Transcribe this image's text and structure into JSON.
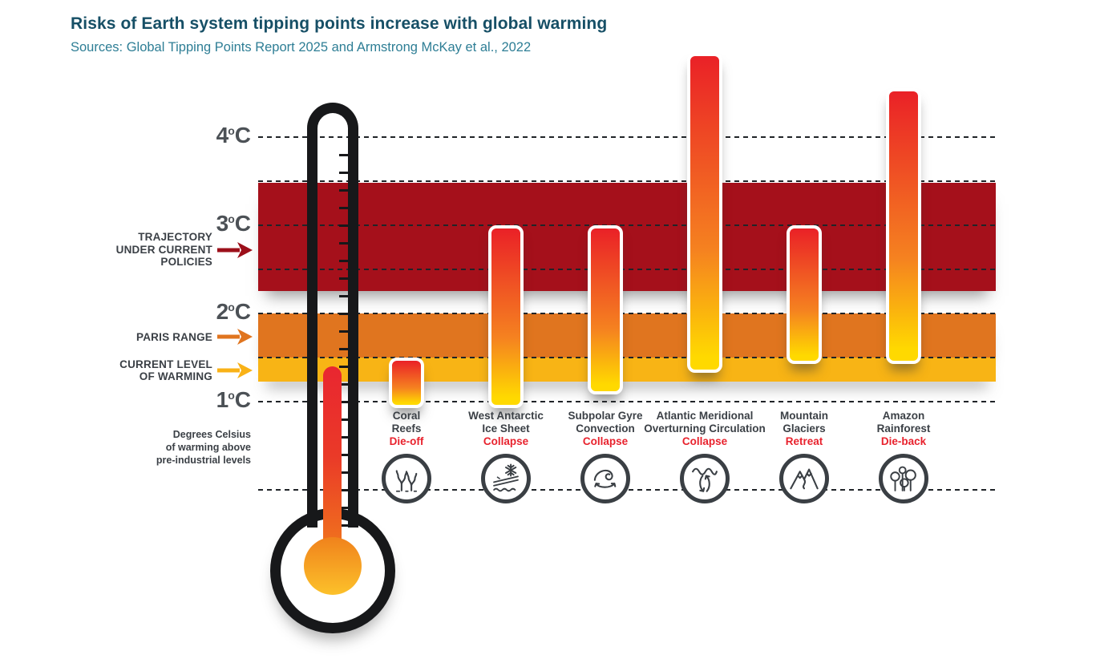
{
  "header": {
    "title": "Risks of Earth system tipping points increase with global warming",
    "subtitle": "Sources: Global Tipping Points Report 2025 and Armstrong McKay et al., 2022"
  },
  "colors": {
    "title_teal": "#164f66",
    "subtitle_teal": "#2e7e95",
    "text_dark": "#3b4046",
    "tick_gray": "#4c5156",
    "action_red": "#e8222d",
    "trajectory_band_red": "#a5101b",
    "paris_band_orange": "#e0751f",
    "current_band_yellow": "#f8b415",
    "bar_gradient_top": "#ea2127",
    "bar_gradient_mid": "#f58220",
    "bar_gradient_bottom": "#ffd900",
    "thermometer_black": "#17181a",
    "bulb_orange_top": "#f0821c",
    "bulb_orange_bottom": "#fcc12a"
  },
  "chart_data": {
    "type": "bar",
    "subtype": "floating-range-columns",
    "title": "Risks of Earth system tipping points increase with global warming",
    "xlabel": "",
    "ylabel": "Degrees Celsius of warming above pre-industrial levels",
    "ylabel_lines": [
      "Degrees Celsius",
      "of warming above",
      "pre-industrial levels"
    ],
    "unit": "°C",
    "ylim": [
      0,
      5.2
    ],
    "grid": "horizontal dashed lines at 0, 1, 1.5, 2, 2.5, 3, 3.5 and 4 °C",
    "gridlines_c": [
      0,
      1,
      1.5,
      2,
      2.5,
      3,
      3.5,
      4
    ],
    "ticks": [
      {
        "c": 4,
        "label": "4°C"
      },
      {
        "c": 3,
        "label": "3°C"
      },
      {
        "c": 2,
        "label": "2°C"
      },
      {
        "c": 1,
        "label": "1°C"
      }
    ],
    "reference_bands": [
      {
        "id": "trajectory-under-current-policies",
        "label_lines": [
          "TRAJECTORY",
          "UNDER CURRENT",
          "POLICIES"
        ],
        "from_c": 2.25,
        "to_c": 3.48,
        "color": "#a5101b",
        "arrow_color": "#9c0f1a",
        "label_center_c": 2.72
      },
      {
        "id": "paris-range",
        "label_lines": [
          "PARIS RANGE"
        ],
        "from_c": 1.5,
        "to_c": 2.0,
        "color": "#e0751f",
        "arrow_color": "#e0751f",
        "label_center_c": 1.73
      },
      {
        "id": "current-level-of-warming",
        "label_lines": [
          "CURRENT LEVEL",
          "OF WARMING"
        ],
        "from_c": 1.22,
        "to_c": 1.5,
        "color": "#f8b415",
        "arrow_color": "#f9b217",
        "label_center_c": 1.35
      }
    ],
    "categories": [
      "Coral Reefs",
      "West Antarctic Ice Sheet",
      "Subpolar Gyre Convection",
      "Atlantic Meridional Overturning Circulation",
      "Mountain Glaciers",
      "Amazon Rainforest"
    ],
    "series": [
      {
        "id": "coral-reefs",
        "name_lines": [
          "Coral",
          "Reefs"
        ],
        "effect": "Die-off",
        "min_c": 1.0,
        "max_c": 1.5,
        "icon": "coral-reefs-icon"
      },
      {
        "id": "west-antarctic-ice-sheet",
        "name_lines": [
          "West Antarctic",
          "Ice Sheet"
        ],
        "effect": "Collapse",
        "min_c": 1.0,
        "max_c": 3.0,
        "icon": "ice-sheet-icon"
      },
      {
        "id": "subpolar-gyre-convection",
        "name_lines": [
          "Subpolar Gyre",
          "Convection"
        ],
        "effect": "Collapse",
        "min_c": 1.15,
        "max_c": 3.0,
        "icon": "gyre-icon"
      },
      {
        "id": "atlantic-meridional-overturning-circulation",
        "name_lines": [
          "Atlantic Meridional",
          "Overturning Circulation"
        ],
        "effect": "Collapse",
        "min_c": 1.4,
        "max_c": 4.95,
        "icon": "amoc-icon"
      },
      {
        "id": "mountain-glaciers",
        "name_lines": [
          "Mountain",
          "Glaciers"
        ],
        "effect": "Retreat",
        "min_c": 1.5,
        "max_c": 3.0,
        "icon": "mountain-glaciers-icon"
      },
      {
        "id": "amazon-rainforest",
        "name_lines": [
          "Amazon",
          "Rainforest"
        ],
        "effect": "Die-back",
        "min_c": 1.5,
        "max_c": 4.55,
        "icon": "rainforest-icon"
      }
    ],
    "thermometer": {
      "reading_c": 1.4
    }
  }
}
